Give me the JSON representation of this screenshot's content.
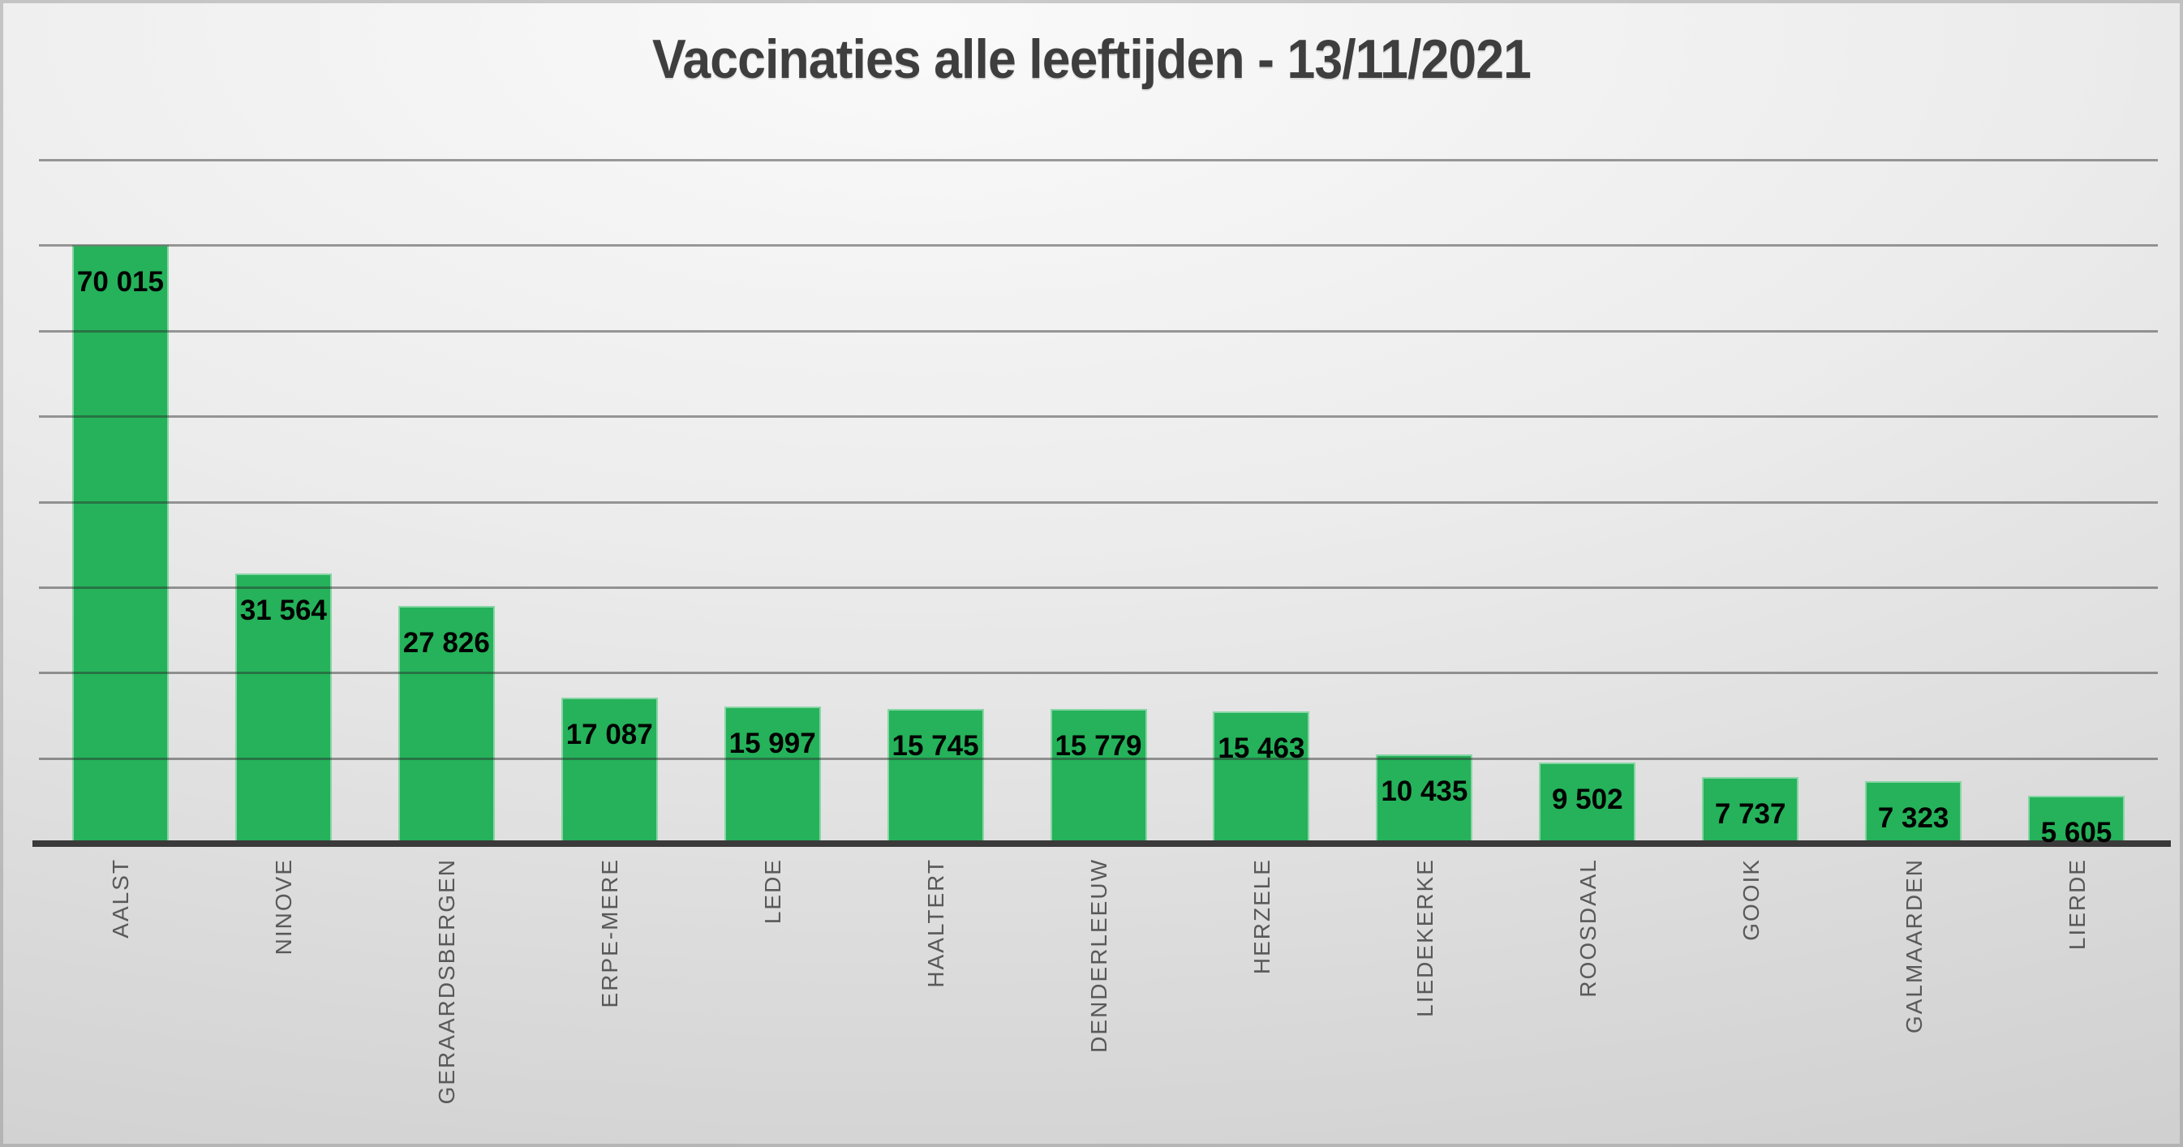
{
  "chart_data": {
    "type": "bar",
    "title": "Vaccinaties alle leeftijden - 13/11/2021",
    "categories": [
      "AALST",
      "NINOVE",
      "GERAARDSBERGEN",
      "ERPE-MERE",
      "LEDE",
      "HAALTERT",
      "DENDERLEEUW",
      "HERZELE",
      "LIEDEKERKE",
      "ROOSDAAL",
      "GOOIK",
      "GALMAARDEN",
      "LIERDE"
    ],
    "values": [
      70015,
      31564,
      27826,
      17087,
      15997,
      15745,
      15779,
      15463,
      10435,
      9502,
      7737,
      7323,
      5605
    ],
    "value_labels": [
      "70 015",
      "31 564",
      "27 826",
      "17 087",
      "15 997",
      "15 745",
      "15 779",
      "15 463",
      "10 435",
      "9 502",
      "7 737",
      "7 323",
      "5 605"
    ],
    "xlabel": "",
    "ylabel": "",
    "ylim": [
      0,
      80000
    ],
    "gridline_interval": 10000,
    "grid": true,
    "legend": false,
    "y_axis_labels_visible": false,
    "value_label_position": "inside-end",
    "category_label_rotation_deg": -90,
    "colors": {
      "bar": "#25b25a",
      "bar_edge": "rgba(255,255,255,0.45)",
      "gridline": "#8d8d8d",
      "axis_line": "#3a3a3a",
      "title": "#3e3e3e",
      "category_label": "#595959",
      "value_label": "#000000",
      "background_light": "#fafafa",
      "background_dark": "#c7c7c7"
    }
  }
}
